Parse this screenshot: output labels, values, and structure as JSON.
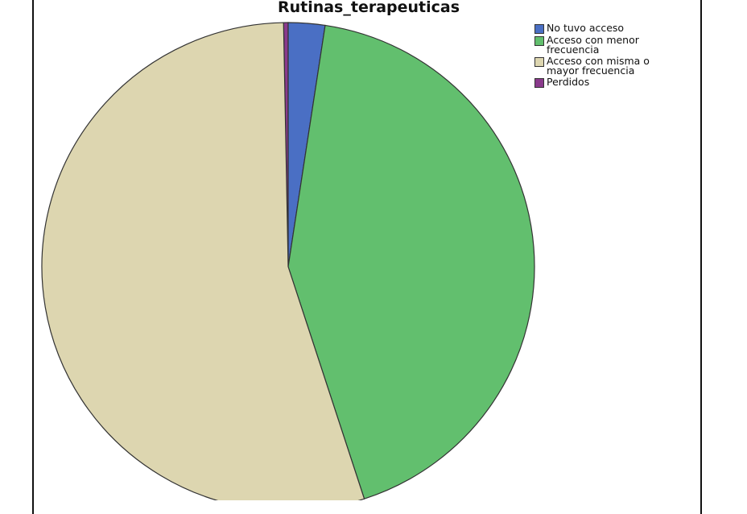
{
  "chart_data": {
    "type": "pie",
    "title": "Rutinas_terapeuticas",
    "categories": [
      "No tuvo acceso",
      "Acceso con menor frecuencia",
      "Acceso con misma o mayor frecuencia",
      "Perdidos"
    ],
    "values": [
      2.4,
      42.6,
      54.7,
      0.3
    ],
    "colors": [
      "#4a6fc4",
      "#62bf6e",
      "#ddd6b0",
      "#8a3a8c"
    ],
    "legend_position": "top-right"
  }
}
